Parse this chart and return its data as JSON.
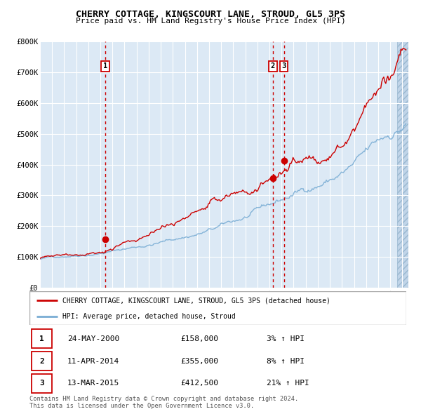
{
  "title": "CHERRY COTTAGE, KINGSCOURT LANE, STROUD, GL5 3PS",
  "subtitle": "Price paid vs. HM Land Registry's House Price Index (HPI)",
  "xmin": 1995.0,
  "xmax": 2025.5,
  "ymin": 0,
  "ymax": 800000,
  "yticks": [
    0,
    100000,
    200000,
    300000,
    400000,
    500000,
    600000,
    700000,
    800000
  ],
  "ytick_labels": [
    "£0",
    "£100K",
    "£200K",
    "£300K",
    "£400K",
    "£500K",
    "£600K",
    "£700K",
    "£800K"
  ],
  "xticks": [
    1995,
    1996,
    1997,
    1998,
    1999,
    2000,
    2001,
    2002,
    2003,
    2004,
    2005,
    2006,
    2007,
    2008,
    2009,
    2010,
    2011,
    2012,
    2013,
    2014,
    2015,
    2016,
    2017,
    2018,
    2019,
    2020,
    2021,
    2022,
    2023,
    2024,
    2025
  ],
  "bg_color": "#dce9f5",
  "hatch_color": "#c0d4e8",
  "grid_color": "#ffffff",
  "red_line_color": "#cc0000",
  "blue_line_color": "#7aadd4",
  "sale_marker_color": "#cc0000",
  "vline_color": "#cc0000",
  "sale1_x": 2000.39,
  "sale1_y": 158000,
  "sale2_x": 2014.28,
  "sale2_y": 355000,
  "sale3_x": 2015.2,
  "sale3_y": 412500,
  "legend_line1": "CHERRY COTTAGE, KINGSCOURT LANE, STROUD, GL5 3PS (detached house)",
  "legend_line2": "HPI: Average price, detached house, Stroud",
  "table_data": [
    {
      "num": "1",
      "date": "24-MAY-2000",
      "price": "£158,000",
      "hpi": "3% ↑ HPI"
    },
    {
      "num": "2",
      "date": "11-APR-2014",
      "price": "£355,000",
      "hpi": "8% ↑ HPI"
    },
    {
      "num": "3",
      "date": "13-MAR-2015",
      "price": "£412,500",
      "hpi": "21% ↑ HPI"
    }
  ],
  "footer": "Contains HM Land Registry data © Crown copyright and database right 2024.\nThis data is licensed under the Open Government Licence v3.0.",
  "seed": 42
}
